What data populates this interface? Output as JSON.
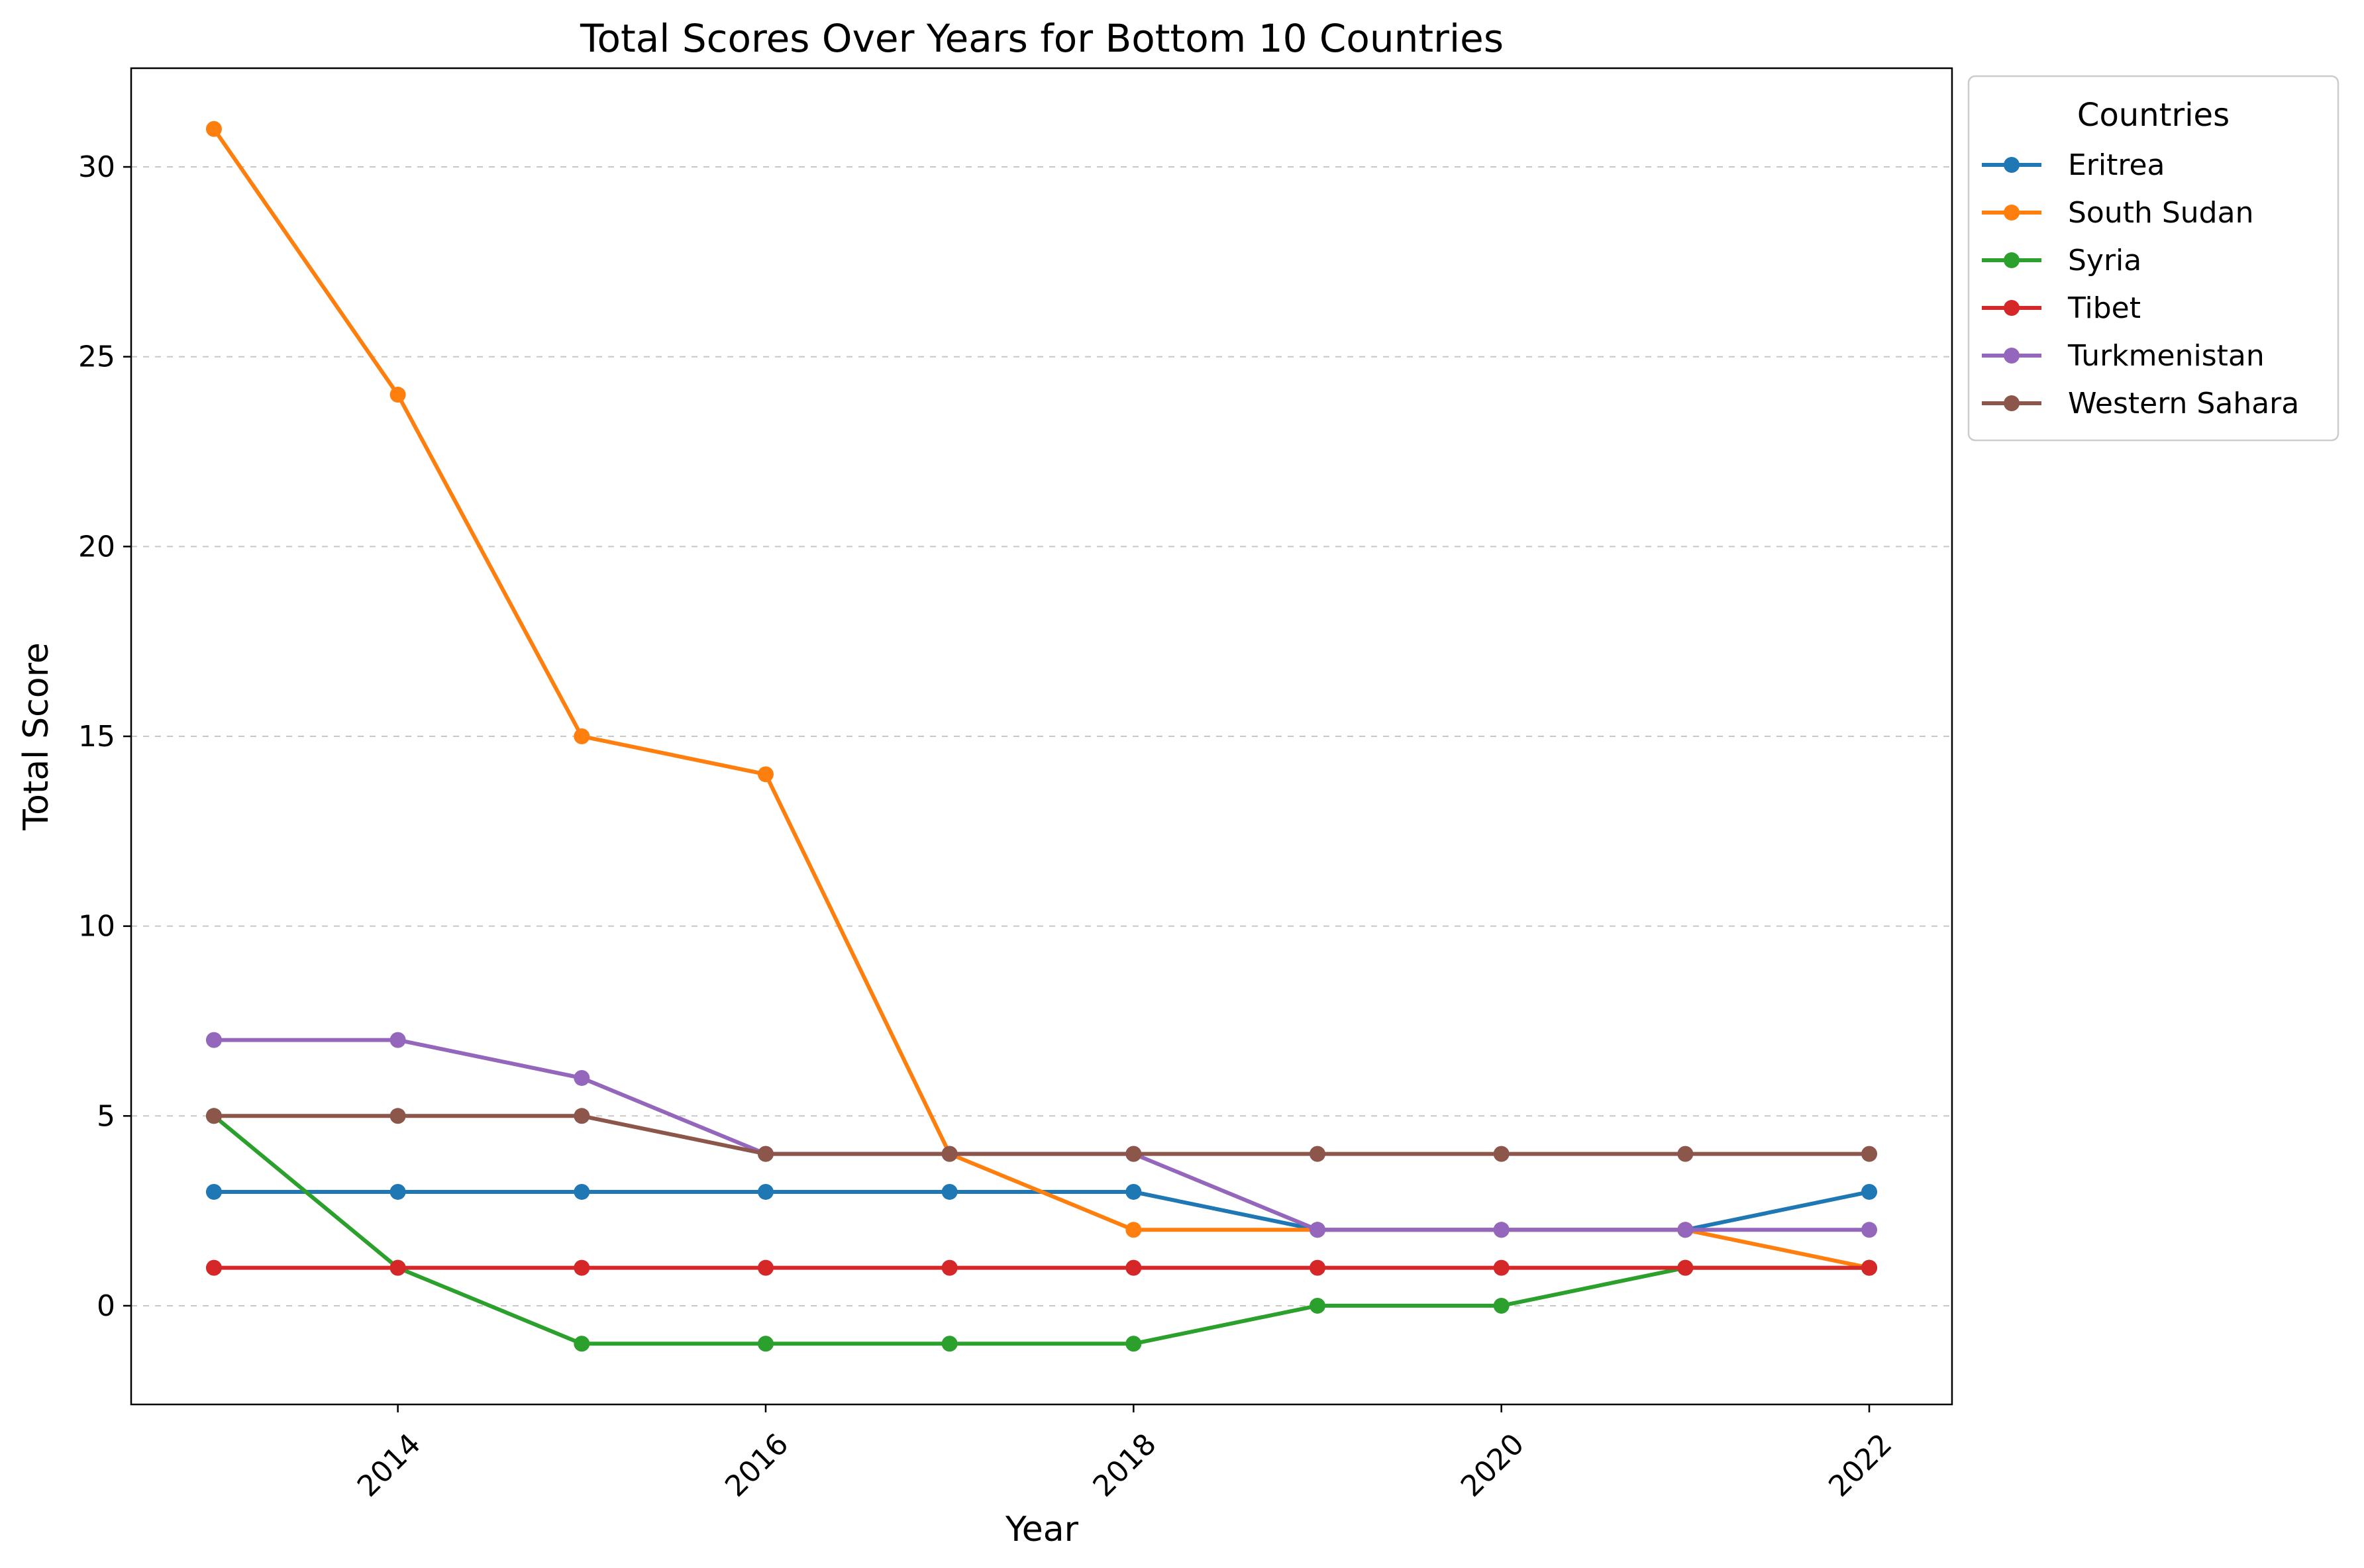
{
  "chart_data": {
    "type": "line",
    "title": "Total Scores Over Years for Bottom 10 Countries",
    "xlabel": "Year",
    "ylabel": "Total Score",
    "x": [
      2013,
      2014,
      2015,
      2016,
      2017,
      2018,
      2019,
      2020,
      2021,
      2022
    ],
    "xlim": [
      2012.55,
      2022.45
    ],
    "ylim": [
      -2.6,
      32.6
    ],
    "x_ticks": [
      2014,
      2016,
      2018,
      2020,
      2022
    ],
    "x_tick_labels": [
      "2014",
      "2016",
      "2018",
      "2020",
      "2022"
    ],
    "y_ticks": [
      0,
      5,
      10,
      15,
      20,
      25,
      30
    ],
    "y_tick_labels": [
      "0",
      "5",
      "10",
      "15",
      "20",
      "25",
      "30"
    ],
    "grid": "y-dashed",
    "legend": {
      "title": "Countries",
      "placement": "outside-top-right"
    },
    "series": [
      {
        "name": "Eritrea",
        "color": "#1f77b4",
        "values": [
          3,
          3,
          3,
          3,
          3,
          3,
          2,
          2,
          2,
          3
        ]
      },
      {
        "name": "South Sudan",
        "color": "#ff7f0e",
        "values": [
          31,
          24,
          15,
          14,
          4,
          2,
          2,
          2,
          2,
          1
        ]
      },
      {
        "name": "Syria",
        "color": "#2ca02c",
        "values": [
          5,
          1,
          -1,
          -1,
          -1,
          -1,
          0,
          0,
          1,
          1
        ]
      },
      {
        "name": "Tibet",
        "color": "#d62728",
        "values": [
          1,
          1,
          1,
          1,
          1,
          1,
          1,
          1,
          1,
          1
        ]
      },
      {
        "name": "Turkmenistan",
        "color": "#9467bd",
        "values": [
          7,
          7,
          6,
          4,
          4,
          4,
          2,
          2,
          2,
          2
        ]
      },
      {
        "name": "Western Sahara",
        "color": "#8c564b",
        "values": [
          5,
          5,
          5,
          4,
          4,
          4,
          4,
          4,
          4,
          4
        ]
      }
    ]
  }
}
